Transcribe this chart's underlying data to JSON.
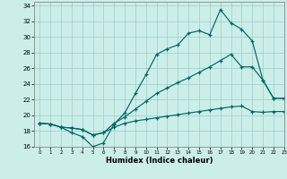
{
  "xlabel": "Humidex (Indice chaleur)",
  "bg_color": "#cceee8",
  "grid_color": "#99cccc",
  "line_color": "#006666",
  "xlim": [
    -0.5,
    23
  ],
  "ylim": [
    16,
    34.5
  ],
  "xticks": [
    0,
    1,
    2,
    3,
    4,
    5,
    6,
    7,
    8,
    9,
    10,
    11,
    12,
    13,
    14,
    15,
    16,
    17,
    18,
    19,
    20,
    21,
    22,
    23
  ],
  "yticks": [
    16,
    18,
    20,
    22,
    24,
    26,
    28,
    30,
    32,
    34
  ],
  "line1_x": [
    0,
    1,
    2,
    3,
    4,
    5,
    6,
    7,
    8,
    9,
    10,
    11,
    12,
    13,
    14,
    15,
    16,
    17,
    18,
    19,
    20,
    21,
    22,
    23
  ],
  "line1_y": [
    19.0,
    18.9,
    18.5,
    17.8,
    17.3,
    16.0,
    16.5,
    18.9,
    20.3,
    22.8,
    25.2,
    27.8,
    28.5,
    29.0,
    30.5,
    30.8,
    30.3,
    33.5,
    31.8,
    31.0,
    29.5,
    24.5,
    22.2,
    22.2
  ],
  "line2_x": [
    0,
    1,
    2,
    3,
    4,
    5,
    6,
    7,
    8,
    9,
    10,
    11,
    12,
    13,
    14,
    15,
    16,
    17,
    18,
    19,
    20,
    21,
    22,
    23
  ],
  "line2_y": [
    19.0,
    18.9,
    18.5,
    18.4,
    18.2,
    17.5,
    17.8,
    19.0,
    19.8,
    20.8,
    21.8,
    22.8,
    23.5,
    24.2,
    24.8,
    25.5,
    26.2,
    27.0,
    27.8,
    26.2,
    26.2,
    24.5,
    22.2,
    22.2
  ],
  "line3_x": [
    0,
    1,
    2,
    3,
    4,
    5,
    6,
    7,
    8,
    9,
    10,
    11,
    12,
    13,
    14,
    15,
    16,
    17,
    18,
    19,
    20,
    21,
    22,
    23
  ],
  "line3_y": [
    19.0,
    18.9,
    18.5,
    18.4,
    18.2,
    17.5,
    17.8,
    18.5,
    19.0,
    19.3,
    19.5,
    19.7,
    19.9,
    20.1,
    20.3,
    20.5,
    20.7,
    20.9,
    21.1,
    21.2,
    20.5,
    20.4,
    20.5,
    20.5
  ]
}
